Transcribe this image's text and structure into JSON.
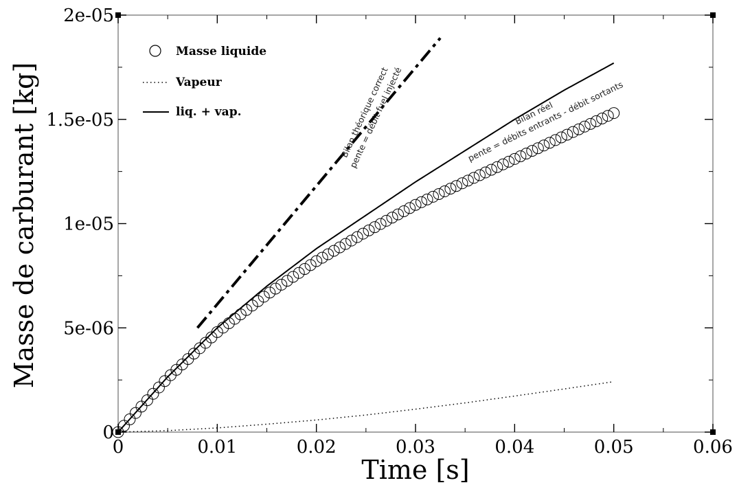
{
  "chart_data": {
    "type": "line",
    "xlabel": "Time [s]",
    "ylabel": "Masse de carburant [kg]",
    "xlim": [
      0,
      0.06
    ],
    "ylim": [
      0,
      2e-05
    ],
    "x_ticks": [
      "0",
      "0.01",
      "0.02",
      "0.03",
      "0.04",
      "0.05",
      "0.06"
    ],
    "y_ticks": [
      "0",
      "5e-06",
      "1e-05",
      "1.5e-05",
      "2e-05"
    ],
    "grid": false,
    "legend_position": "top-left",
    "series": [
      {
        "name": "Masse liquide",
        "style": "circles",
        "color": "#000000",
        "x": [
          0,
          0.005,
          0.01,
          0.015,
          0.02,
          0.025,
          0.03,
          0.035,
          0.04,
          0.045,
          0.05
        ],
        "y": [
          0,
          2.6e-06,
          4.8e-06,
          6.6e-06,
          8.2e-06,
          9.6e-06,
          1.09e-05,
          1.2e-05,
          1.31e-05,
          1.42e-05,
          1.53e-05
        ]
      },
      {
        "name": "Vapeur",
        "style": "dotted",
        "color": "#000000",
        "x": [
          0,
          0.005,
          0.01,
          0.015,
          0.02,
          0.025,
          0.03,
          0.035,
          0.04,
          0.045,
          0.05
        ],
        "y": [
          0,
          7e-08,
          2e-07,
          3.8e-07,
          5.8e-07,
          8.2e-07,
          1.1e-06,
          1.4e-06,
          1.73e-06,
          2.07e-06,
          2.42e-06
        ]
      },
      {
        "name": "liq. + vap.",
        "style": "solid",
        "color": "#000000",
        "x": [
          0,
          0.005,
          0.01,
          0.015,
          0.02,
          0.025,
          0.03,
          0.035,
          0.04,
          0.045,
          0.05
        ],
        "y": [
          0,
          2.65e-06,
          5e-06,
          7e-06,
          8.8e-06,
          1.04e-05,
          1.2e-05,
          1.35e-05,
          1.5e-05,
          1.64e-05,
          1.77e-05
        ]
      },
      {
        "style": "dash-dot",
        "color": "#000000",
        "x": [
          0.008,
          0.0325
        ],
        "y": [
          5e-06,
          1.89e-05
        ]
      }
    ],
    "annotations": [
      {
        "line1": "Bilan théorique correct",
        "line2": "pente = débit fuel injecté"
      },
      {
        "line1": "Bilan réel",
        "line2": "pente = débits entrants - débit sortants"
      }
    ]
  }
}
